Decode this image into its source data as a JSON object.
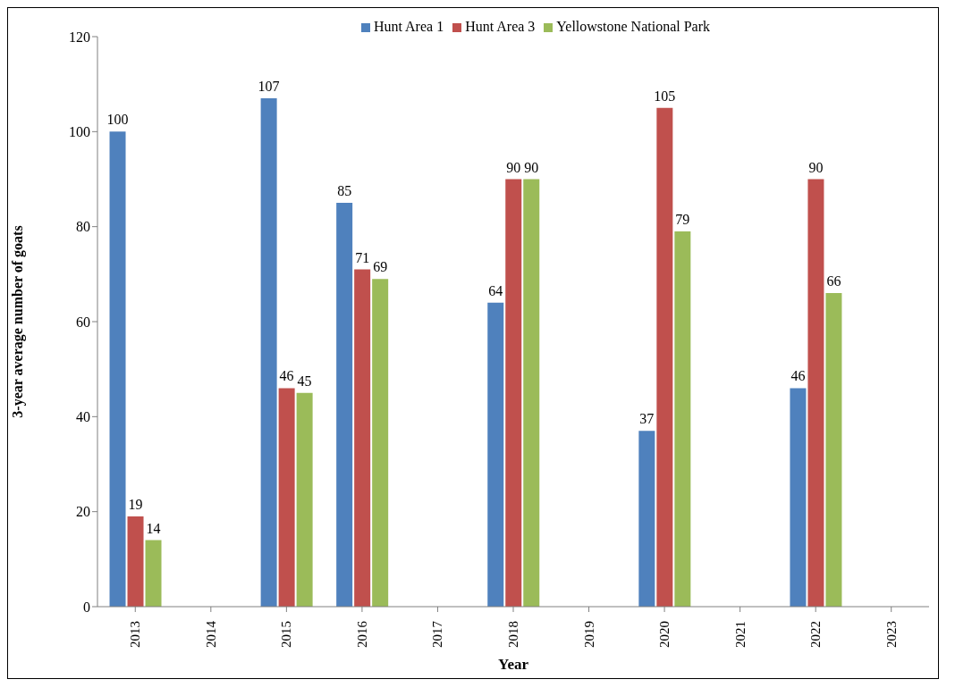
{
  "chart_data": {
    "type": "bar",
    "xlabel": "Year",
    "ylabel": "3-year average number of goats",
    "categories": [
      "2013",
      "2014",
      "2015",
      "2016",
      "2017",
      "2018",
      "2019",
      "2020",
      "2021",
      "2022",
      "2023"
    ],
    "series": [
      {
        "name": "Hunt Area 1",
        "color": "#4f81bd",
        "values": [
          100,
          null,
          107,
          85,
          null,
          64,
          null,
          37,
          null,
          46,
          null
        ]
      },
      {
        "name": "Hunt Area 3",
        "color": "#c0504d",
        "values": [
          19,
          null,
          46,
          71,
          null,
          90,
          null,
          105,
          null,
          90,
          null
        ]
      },
      {
        "name": "Yellowstone National Park",
        "color": "#9bbb59",
        "values": [
          14,
          null,
          45,
          69,
          null,
          90,
          null,
          79,
          null,
          66,
          null
        ]
      }
    ],
    "ylim": [
      0,
      120
    ],
    "yticks": [
      0,
      20,
      40,
      60,
      80,
      100,
      120
    ],
    "grid": false,
    "legend": "top",
    "data_labels": true
  }
}
